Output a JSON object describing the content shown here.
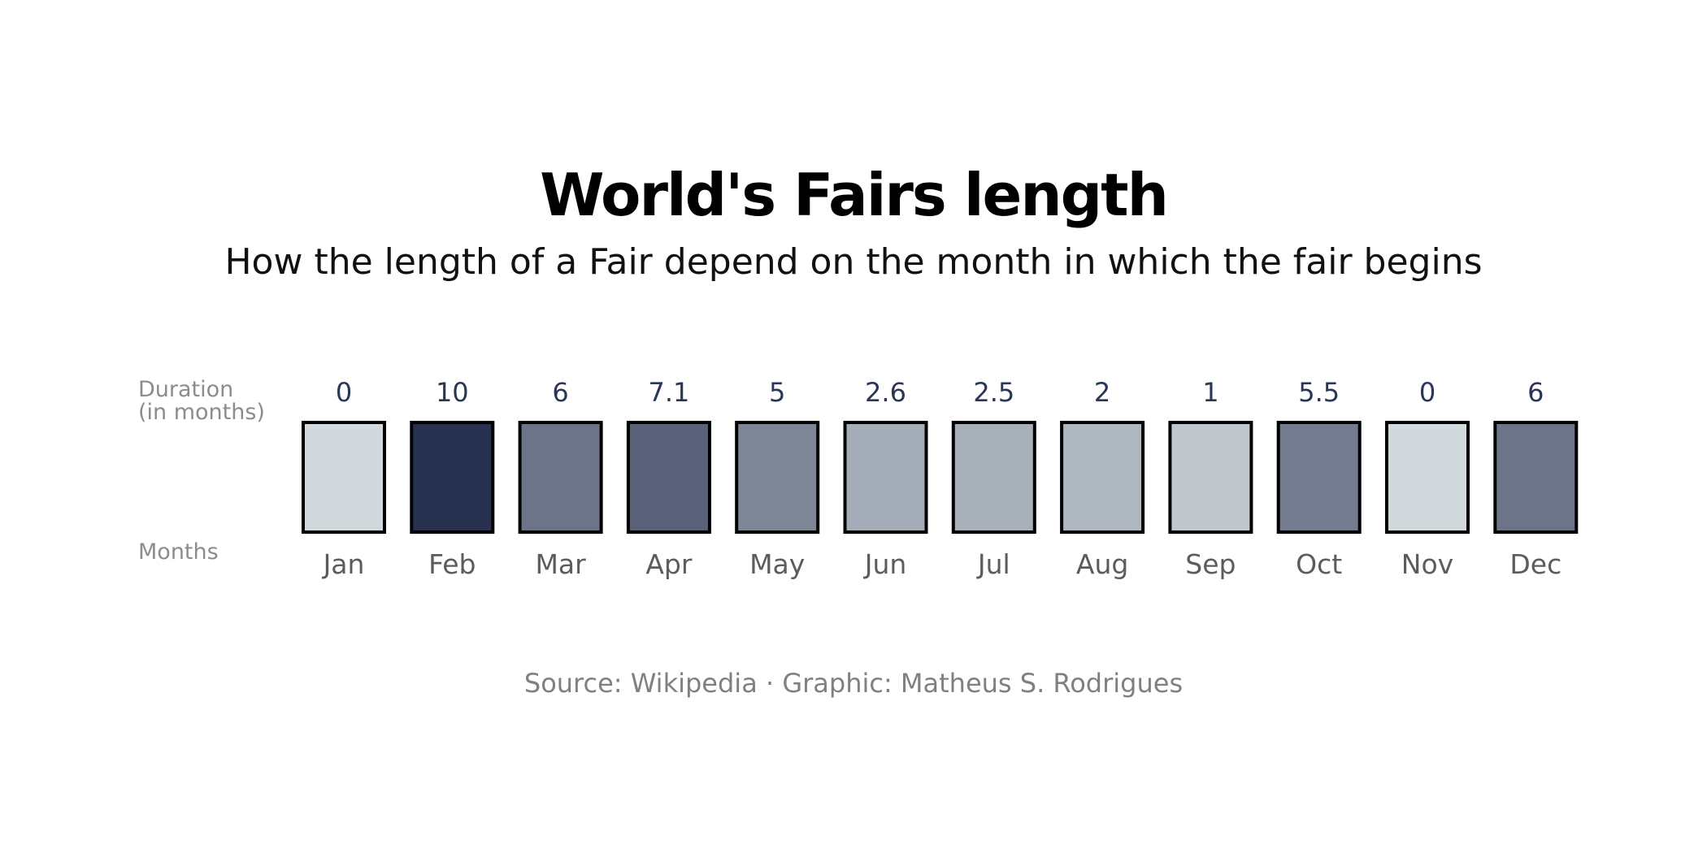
{
  "chart_data": {
    "type": "heatmap",
    "title": "World's Fairs length",
    "subtitle": "How the length of a Fair depend on the month in which the fair begins",
    "row_labels": {
      "values_line1": "Duration",
      "values_line2": "(in months)",
      "categories": "Months"
    },
    "categories": [
      "Jan",
      "Feb",
      "Mar",
      "Apr",
      "May",
      "Jun",
      "Jul",
      "Aug",
      "Sep",
      "Oct",
      "Nov",
      "Dec"
    ],
    "values": [
      0,
      10,
      6,
      7.1,
      5,
      2.6,
      2.5,
      2,
      1,
      5.5,
      0,
      6
    ],
    "value_labels": [
      "0",
      "10",
      "6",
      "7.1",
      "5",
      "2.6",
      "2.5",
      "2",
      "1",
      "5.5",
      "0",
      "6"
    ],
    "color_scale": {
      "min": 0,
      "max": 10,
      "low_color": "#d1d9dc",
      "high_color": "#283250"
    },
    "source": "Source: Wikipedia · Graphic: Matheus S. Rodrigues"
  }
}
